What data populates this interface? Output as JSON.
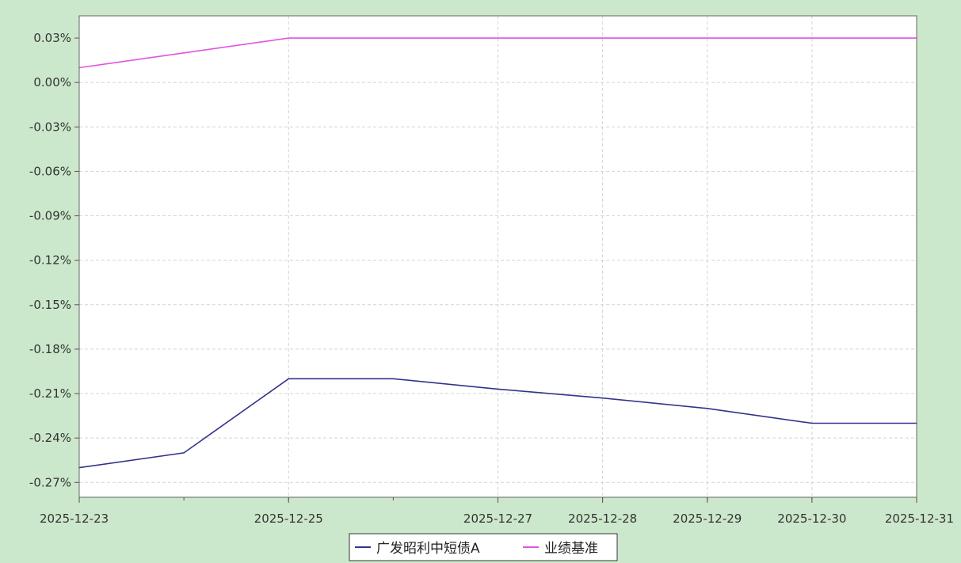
{
  "chart_data": {
    "type": "line",
    "title": "",
    "xlabel": "",
    "ylabel": "",
    "x_tick_labels": [
      "2025-12-23",
      "2025-12-25",
      "2025-12-27",
      "2025-12-28",
      "2025-12-29",
      "2025-12-30",
      "2025-12-31"
    ],
    "y_tick_labels": [
      "0.03%",
      "0.00%",
      "-0.03%",
      "-0.06%",
      "-0.09%",
      "-0.12%",
      "-0.15%",
      "-0.18%",
      "-0.21%",
      "-0.24%",
      "-0.27%"
    ],
    "ylim": [
      -0.28,
      0.045
    ],
    "grid": true,
    "legend_position": "bottom-center",
    "series": [
      {
        "name": "广发昭利中短债A",
        "color": "#33338c",
        "points": [
          {
            "x": "2025-12-23",
            "y": -0.26
          },
          {
            "x": "2025-12-24",
            "y": -0.25
          },
          {
            "x": "2025-12-25",
            "y": -0.2
          },
          {
            "x": "2025-12-26",
            "y": -0.2
          },
          {
            "x": "2025-12-27",
            "y": -0.207
          },
          {
            "x": "2025-12-28",
            "y": -0.213
          },
          {
            "x": "2025-12-29",
            "y": -0.22
          },
          {
            "x": "2025-12-30",
            "y": -0.23
          },
          {
            "x": "2025-12-31",
            "y": -0.23
          }
        ]
      },
      {
        "name": "业绩基准",
        "color": "#e055e0",
        "points": [
          {
            "x": "2025-12-23",
            "y": 0.01
          },
          {
            "x": "2025-12-24",
            "y": 0.02
          },
          {
            "x": "2025-12-25",
            "y": 0.03
          },
          {
            "x": "2025-12-26",
            "y": 0.03
          },
          {
            "x": "2025-12-27",
            "y": 0.03
          },
          {
            "x": "2025-12-28",
            "y": 0.03
          },
          {
            "x": "2025-12-29",
            "y": 0.03
          },
          {
            "x": "2025-12-30",
            "y": 0.03
          },
          {
            "x": "2025-12-31",
            "y": 0.03
          }
        ]
      }
    ]
  }
}
